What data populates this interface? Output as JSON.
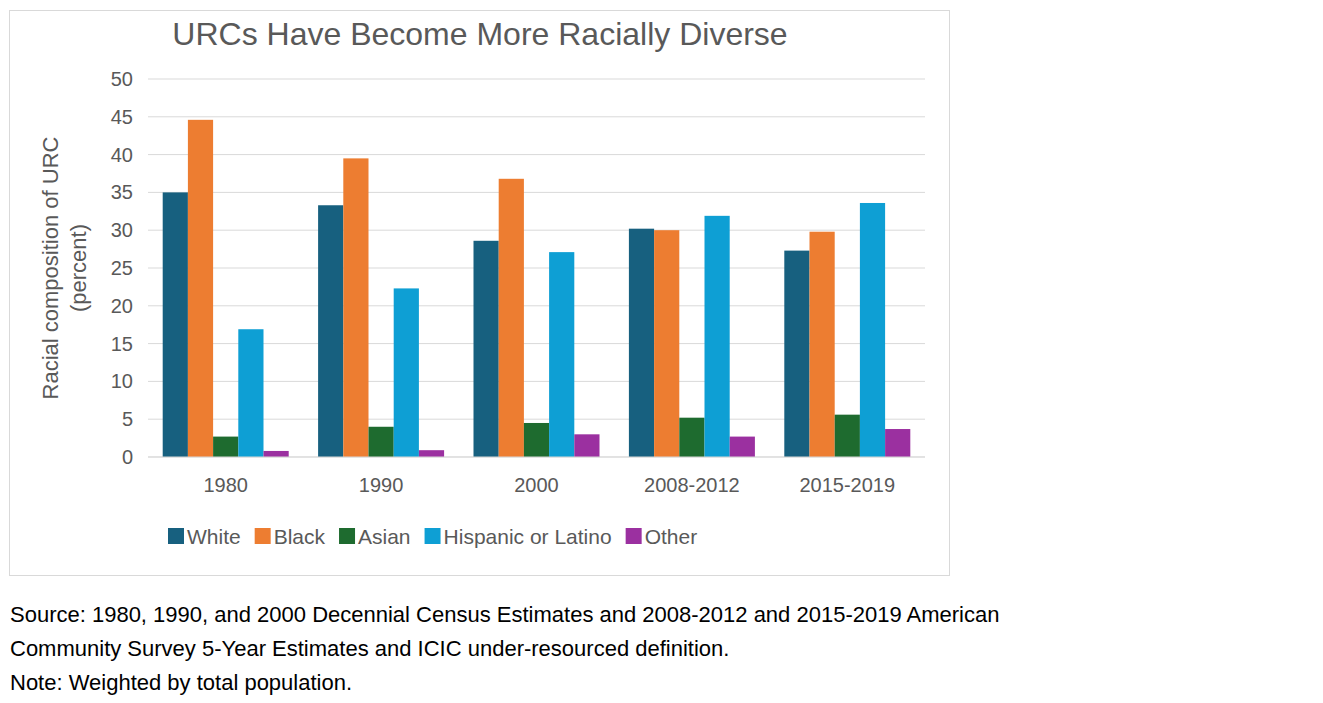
{
  "chart_data": {
    "type": "bar",
    "title": "URCs Have Become More Racially Diverse",
    "ylabel": [
      "Racial composition of  URC",
      "(percent)"
    ],
    "categories": [
      "1980",
      "1990",
      "2000",
      "2008-2012",
      "2015-2019"
    ],
    "series": [
      {
        "name": "White",
        "color": "#17607f",
        "values": [
          35.0,
          33.3,
          28.6,
          30.2,
          27.3
        ]
      },
      {
        "name": "Black",
        "color": "#ed7d31",
        "values": [
          44.6,
          39.5,
          36.8,
          30.0,
          29.8
        ]
      },
      {
        "name": "Asian",
        "color": "#1e6b2f",
        "values": [
          2.7,
          4.0,
          4.5,
          5.2,
          5.6
        ]
      },
      {
        "name": "Hispanic or Latino",
        "color": "#0e9fd4",
        "values": [
          16.9,
          22.3,
          27.1,
          31.9,
          33.6
        ]
      },
      {
        "name": "Other",
        "color": "#9b30a0",
        "values": [
          0.8,
          0.9,
          3.0,
          2.7,
          3.7
        ]
      }
    ],
    "ylim": [
      0,
      50
    ],
    "yticks": [
      0,
      5,
      10,
      15,
      20,
      25,
      30,
      35,
      40,
      45,
      50
    ],
    "grid": true,
    "legend": "bottom",
    "notes": [
      "Source: 1980, 1990, and 2000 Decennial Census Estimates and 2008-2012 and 2015-2019 American",
      "Community Survey 5-Year Estimates and ICIC under-resourced definition.",
      "Note: Weighted by total population."
    ]
  }
}
